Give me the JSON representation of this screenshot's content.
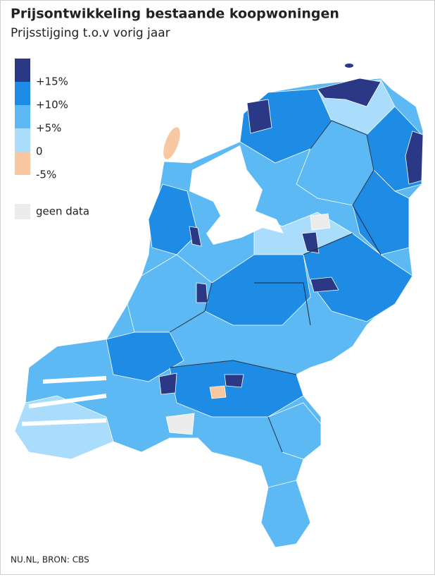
{
  "header": {
    "title": "Prijsontwikkeling bestaande koopwoningen",
    "subtitle": "Prijsstijging t.o.v vorig jaar"
  },
  "legend": {
    "items": [
      {
        "label": "+15%",
        "color": "#2a3886"
      },
      {
        "label": "+10%",
        "color": "#1e8be4"
      },
      {
        "label": "+5%",
        "color": "#5cb9f4"
      },
      {
        "label": "0",
        "color": "#aadcfb"
      },
      {
        "label": "-5%",
        "color": "#f8c8a2"
      },
      {
        "label": "geen data",
        "color": "#ececec"
      }
    ]
  },
  "source": "NU.NL, BRON: CBS"
}
